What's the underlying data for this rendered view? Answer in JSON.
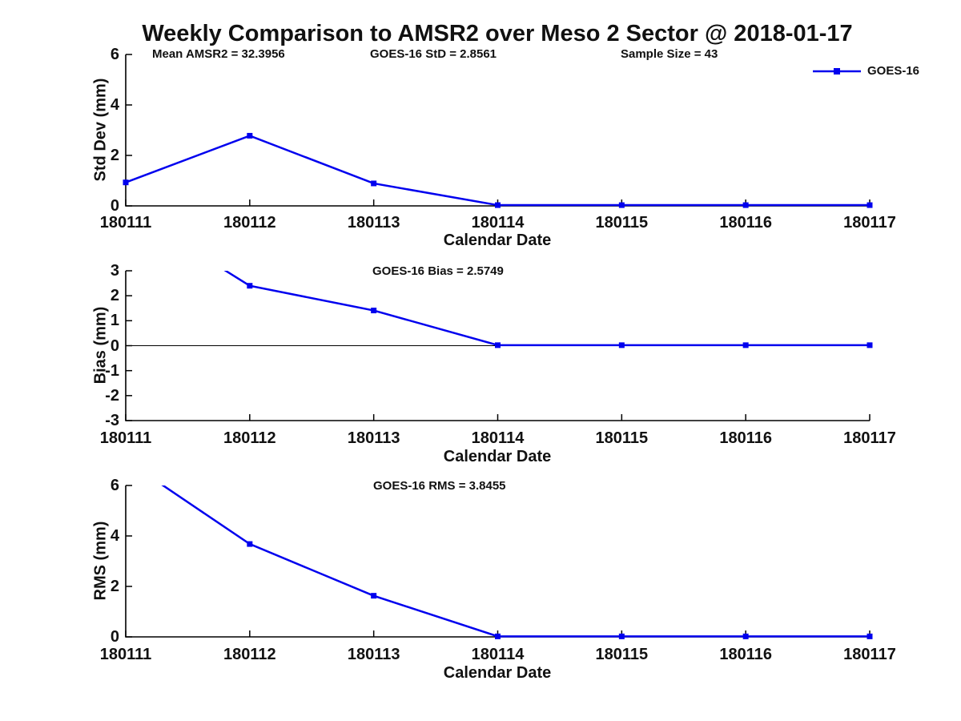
{
  "title": "Weekly Comparison to AMSR2 over Meso 2 Sector @ 2018-01-17",
  "legend": {
    "label": "GOES-16"
  },
  "colors": {
    "series": "#0000EE",
    "axis": "#000000",
    "text": "#111111"
  },
  "chart_data": [
    {
      "type": "line",
      "name": "std-dev-panel",
      "categories": [
        "180111",
        "180112",
        "180113",
        "180114",
        "180115",
        "180116",
        "180117"
      ],
      "series": [
        {
          "name": "GOES-16",
          "values": [
            0.93,
            2.78,
            0.89,
            0.03,
            0.03,
            0.03,
            0.03
          ]
        }
      ],
      "xlabel": "Calendar Date",
      "ylabel": "Std Dev (mm)",
      "ylim": [
        0,
        6
      ],
      "yticks": [
        0,
        2,
        4,
        6
      ],
      "annotations": [
        "Mean AMSR2 = 32.3956",
        "GOES-16 StD = 2.8561",
        "Sample Size = 43"
      ],
      "legend_position": "upper-right-outside",
      "grid": false,
      "marker": "square"
    },
    {
      "type": "line",
      "name": "bias-panel",
      "categories": [
        "180111",
        "180112",
        "180113",
        "180114",
        "180115",
        "180116",
        "180117"
      ],
      "series": [
        {
          "name": "GOES-16",
          "values": [
            5.5,
            2.4,
            1.41,
            0.02,
            0.02,
            0.02,
            0.02
          ]
        }
      ],
      "xlabel": "Calendar Date",
      "ylabel": "Bias (mm)",
      "ylim": [
        -3,
        3
      ],
      "yticks": [
        3,
        2,
        1,
        0,
        -1,
        -2,
        -3
      ],
      "annotations": [
        "GOES-16 Bias  = 2.5749"
      ],
      "zero_line": true,
      "grid": false,
      "marker": "square"
    },
    {
      "type": "line",
      "name": "rms-panel",
      "categories": [
        "180111",
        "180112",
        "180113",
        "180114",
        "180115",
        "180116",
        "180117"
      ],
      "series": [
        {
          "name": "GOES-16",
          "values": [
            7.0,
            3.68,
            1.63,
            0.02,
            0.02,
            0.02,
            0.02
          ]
        }
      ],
      "xlabel": "Calendar Date",
      "ylabel": "RMS (mm)",
      "ylim": [
        0,
        6
      ],
      "yticks": [
        0,
        2,
        4,
        6
      ],
      "annotations": [
        "GOES-16 RMS = 3.8455"
      ],
      "grid": false,
      "marker": "square"
    }
  ]
}
